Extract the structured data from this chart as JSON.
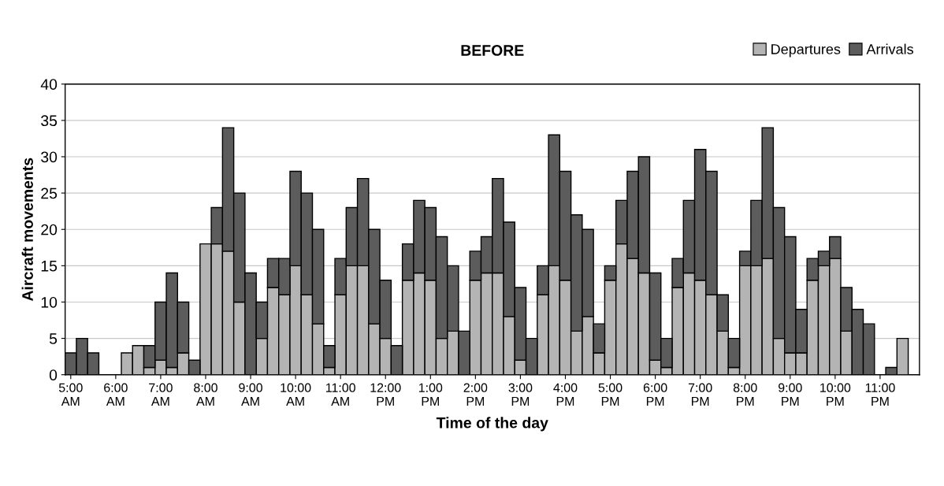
{
  "chart_data": {
    "type": "bar",
    "title": "BEFORE",
    "xlabel": "Time of the day",
    "ylabel": "Aircraft movements",
    "categories": [
      "5:00\nAM",
      null,
      null,
      null,
      "6:00\nAM",
      null,
      null,
      null,
      "7:00\nAM",
      null,
      null,
      null,
      "8:00\nAM",
      null,
      null,
      null,
      "9:00\nAM",
      null,
      null,
      null,
      "10:00\nAM",
      null,
      null,
      null,
      "11:00\nAM",
      null,
      null,
      null,
      "12:00\nPM",
      null,
      null,
      null,
      "1:00\nPM",
      null,
      null,
      null,
      "2:00\nPM",
      null,
      null,
      null,
      "3:00\nPM",
      null,
      null,
      null,
      "4:00\nPM",
      null,
      null,
      null,
      "5:00\nPM",
      null,
      null,
      null,
      "6:00\nPM",
      null,
      null,
      null,
      "7:00\nPM",
      null,
      null,
      null,
      "8:00\nPM",
      null,
      null,
      null,
      "9:00\nPM",
      null,
      null,
      null,
      "10:00\nPM",
      null,
      null,
      null,
      "11:00\nPM",
      null,
      null,
      null
    ],
    "stacked": true,
    "series": [
      {
        "name": "Departures",
        "color": "#b4b4b4",
        "values": [
          0,
          0,
          0,
          0,
          0,
          3,
          4,
          1,
          2,
          1,
          3,
          0,
          18,
          18,
          17,
          10,
          0,
          5,
          12,
          11,
          15,
          11,
          7,
          1,
          11,
          15,
          15,
          7,
          5,
          0,
          13,
          14,
          13,
          5,
          6,
          0,
          13,
          14,
          14,
          8,
          2,
          0,
          11,
          15,
          13,
          6,
          8,
          3,
          13,
          18,
          16,
          14,
          2,
          1,
          12,
          14,
          13,
          11,
          6,
          1,
          15,
          15,
          16,
          5,
          3,
          3,
          13,
          15,
          16,
          6,
          0,
          0,
          0,
          0,
          5,
          0
        ]
      },
      {
        "name": "Arrivals",
        "color": "#5c5c5c",
        "values": [
          3,
          5,
          3,
          0,
          0,
          0,
          0,
          3,
          8,
          13,
          7,
          2,
          0,
          5,
          17,
          15,
          14,
          5,
          4,
          5,
          13,
          14,
          13,
          3,
          5,
          8,
          12,
          13,
          8,
          4,
          5,
          10,
          10,
          14,
          9,
          6,
          4,
          5,
          13,
          13,
          10,
          5,
          4,
          18,
          15,
          16,
          12,
          4,
          2,
          6,
          12,
          16,
          12,
          4,
          4,
          10,
          18,
          17,
          5,
          4,
          2,
          9,
          18,
          18,
          16,
          6,
          3,
          2,
          3,
          6,
          9,
          7,
          0,
          1,
          0,
          0
        ]
      }
    ],
    "ylim": [
      0,
      40
    ],
    "yticks": [
      0,
      5,
      10,
      15,
      20,
      25,
      30,
      35,
      40
    ],
    "grid": "y",
    "legend": "top right"
  }
}
